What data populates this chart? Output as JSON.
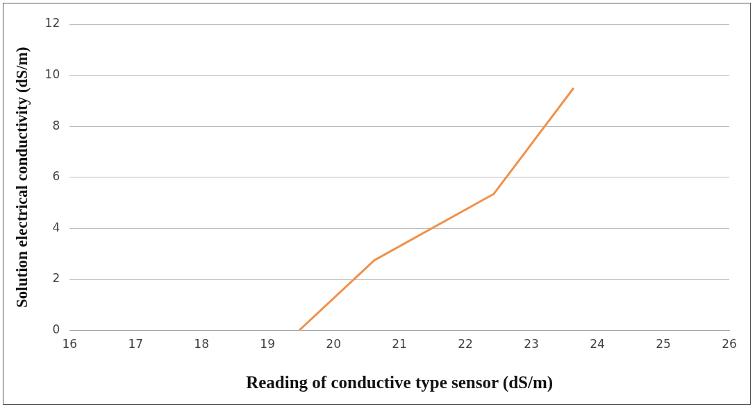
{
  "chart_data": {
    "type": "line",
    "xlabel": "Reading of conductive type sensor (dS/m)",
    "ylabel": "Solution electrical conductivity (dS/m)",
    "series": [
      {
        "color": "#f0914a",
        "x": [
          19.48,
          20.62,
          22.43,
          23.64
        ],
        "values": [
          0,
          2.75,
          5.35,
          9.5
        ]
      }
    ],
    "xlim": [
      16,
      26
    ],
    "xticks": [
      16,
      17,
      18,
      19,
      20,
      21,
      22,
      23,
      24,
      25,
      26
    ],
    "ylim": [
      0,
      12
    ],
    "yticks": [
      0,
      2,
      4,
      6,
      8,
      10,
      12
    ],
    "grid": "y",
    "legend": false,
    "marker": "none",
    "line_style": "solid"
  }
}
